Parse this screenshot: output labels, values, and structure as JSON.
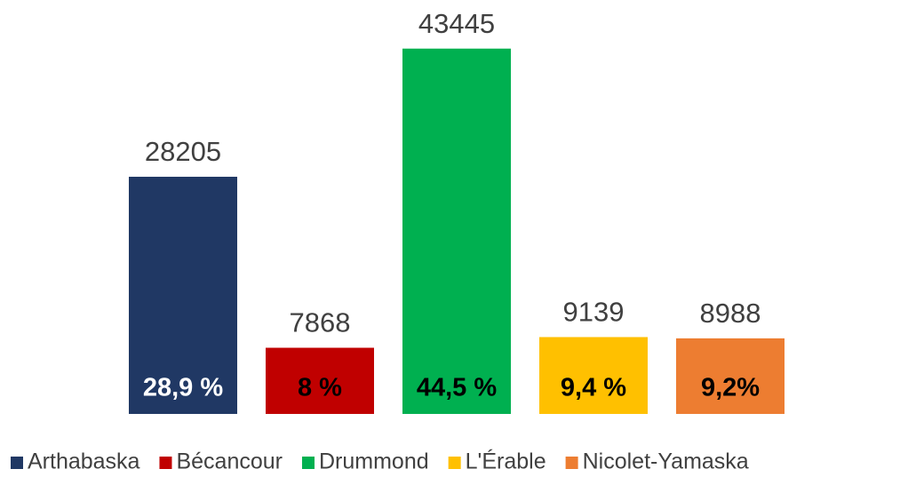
{
  "chart_data": {
    "type": "bar",
    "categories": [
      "Arthabaska",
      "Bécancour",
      "Drummond",
      "L'Érable",
      "Nicolet-Yamaska"
    ],
    "values": [
      28205,
      7868,
      43445,
      9139,
      8988
    ],
    "colors": [
      "#203864",
      "#c00000",
      "#00b050",
      "#ffc000",
      "#ed7d31"
    ],
    "shares": [
      28.9,
      8,
      44.5,
      9.4,
      9.2
    ],
    "share_labels": [
      "28,9 %",
      "8 %",
      "44,5 %",
      "9,4 %",
      "9,2%"
    ],
    "share_label_colors": [
      "#ffffff",
      "#000000",
      "#000000",
      "#000000",
      "#000000"
    ],
    "ylim": [
      0,
      45000
    ],
    "legend": "bottom"
  }
}
